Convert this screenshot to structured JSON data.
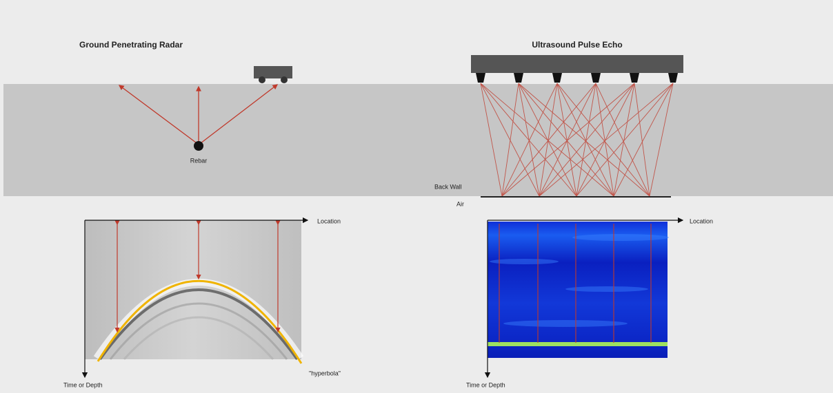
{
  "left": {
    "title": "Ground Penetrating Radar",
    "target_label": "Rebar",
    "x_axis_label": "Location",
    "y_axis_label": "Time or Depth",
    "curve_label": "\"hyperbola\""
  },
  "right": {
    "title": "Ultrasound Pulse Echo",
    "back_wall_label": "Back Wall",
    "air_label": "Air",
    "x_axis_label": "Location",
    "y_axis_label": "Time or Depth"
  }
}
